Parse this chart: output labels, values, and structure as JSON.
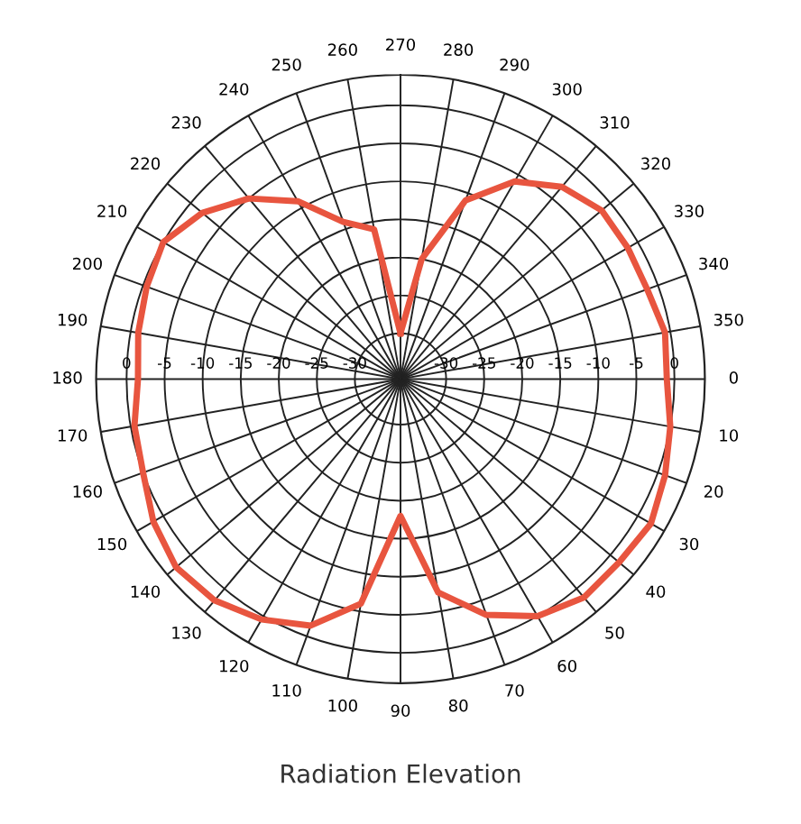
{
  "chart_data": {
    "type": "radar",
    "title": "Radiation Elevation",
    "categories": [
      "270",
      "280",
      "290",
      "300",
      "310",
      "320",
      "330",
      "340",
      "350",
      "0",
      "10",
      "20",
      "30",
      "40",
      "50",
      "60",
      "70",
      "80",
      "90",
      "100",
      "110",
      "120",
      "130",
      "140",
      "150",
      "160",
      "170",
      "180",
      "190",
      "200",
      "210",
      "220",
      "230",
      "240",
      "250",
      "260"
    ],
    "series": [
      {
        "color": "#e8553f",
        "values": [
          -30,
          -20,
          -11,
          -6,
          -3,
          -1.5,
          -1.5,
          -1.5,
          -0.7,
          -1,
          0,
          1,
          2,
          1.5,
          1.5,
          0,
          -3,
          -7.5,
          -18,
          -6,
          -1.5,
          0.5,
          2,
          2.5,
          1.5,
          0,
          -0.5,
          -1.5,
          -1,
          -0.5,
          0,
          -2,
          -5,
          -9,
          -14,
          -16
        ]
      }
    ],
    "ylim": [
      -36,
      4
    ],
    "yticks": [
      -30,
      -25,
      -20,
      -15,
      -10,
      -5,
      0
    ],
    "annotations": [
      "-30",
      "-25",
      "-20",
      "-15",
      "-10",
      "-5",
      "0"
    ],
    "grid": true,
    "marker": "none",
    "line_style": "solid"
  }
}
